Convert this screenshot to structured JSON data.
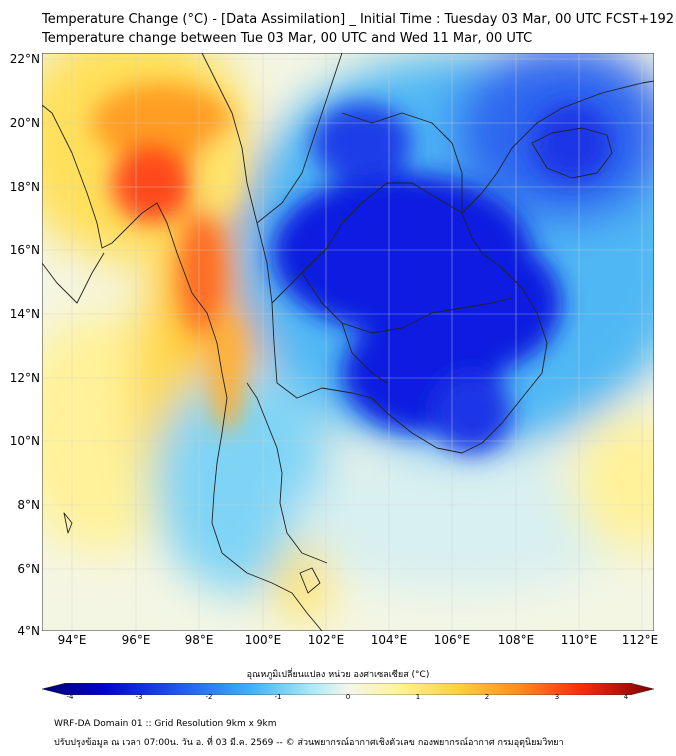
{
  "title": {
    "line1": "Temperature Change (°C) - [Data Assimilation] _ Initial Time : Tuesday 03 Mar, 00 UTC FCST+192",
    "line2": "Temperature change between Tue 03 Mar, 00 UTC and Wed 11 Mar, 00 UTC"
  },
  "map": {
    "lat_labels": [
      "22°N",
      "20°N",
      "18°N",
      "16°N",
      "14°N",
      "12°N",
      "10°N",
      "8°N",
      "6°N",
      "4°N"
    ],
    "lon_labels": [
      "94°E",
      "96°E",
      "98°E",
      "100°E",
      "102°E",
      "104°E",
      "106°E",
      "108°E",
      "110°E",
      "112°E"
    ],
    "field_colors": {
      "deep_blue": "#0a1ee0",
      "blue": "#2f66f0",
      "light_blue": "#4fb8f4",
      "cyan": "#9fe6f8",
      "pale": "#f4f6e4",
      "light_yellow": "#fff59a",
      "yellow": "#ffd84a",
      "orange": "#ff9e24",
      "red_orange": "#ff4a1e"
    }
  },
  "colorbar": {
    "title": "อุณหภูมิเปลี่ยนแปลง หน่วย องศาเซลเซียส (°C)",
    "ticks": [
      "-4",
      "-3",
      "-2",
      "-1",
      "0",
      "1",
      "2",
      "3",
      "4"
    ],
    "min": -4,
    "max": 4
  },
  "footer": {
    "line1": "WRF-DA Domain 01 :: Grid Resolution 9km x 9km",
    "line2": "ปรับปรุงข้อมูล ณ เวลา 07:00น. วัน อ. ที่ 03 มี.ค. 2569 -- © ส่วนพยากรณ์อากาศเชิงตัวเลข กองพยากรณ์อากาศ กรมอุตุนิยมวิทยา"
  }
}
